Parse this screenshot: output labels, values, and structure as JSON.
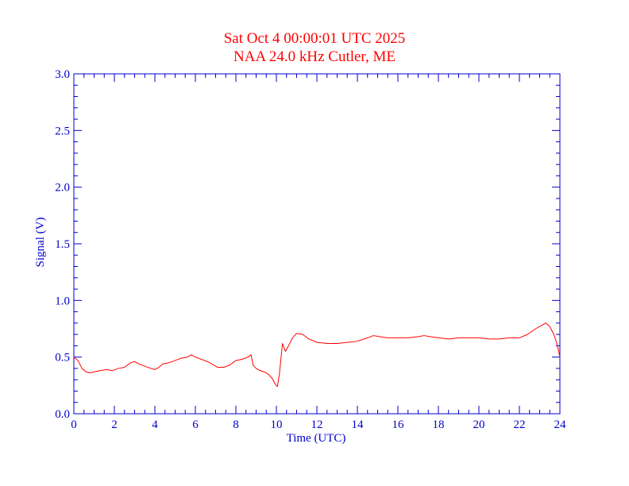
{
  "chart_data": {
    "type": "line",
    "title": "Sat Oct 4 00:00:01 UTC 2025",
    "subtitle": "NAA 24.0 kHz Cutler, ME",
    "xlabel": "Time (UTC)",
    "ylabel": "Signal (V)",
    "xlim": [
      0,
      24
    ],
    "ylim": [
      0.0,
      3.0
    ],
    "x_ticks": [
      "0",
      "2",
      "4",
      "6",
      "8",
      "10",
      "12",
      "14",
      "16",
      "18",
      "20",
      "22",
      "24"
    ],
    "y_ticks": [
      "0.0",
      "0.5",
      "1.0",
      "1.5",
      "2.0",
      "2.5",
      "3.0"
    ],
    "grid": false,
    "series": [
      {
        "color": "#ff0000",
        "points": [
          [
            0.0,
            0.5
          ],
          [
            0.2,
            0.47
          ],
          [
            0.4,
            0.4
          ],
          [
            0.6,
            0.37
          ],
          [
            0.8,
            0.36
          ],
          [
            1.0,
            0.37
          ],
          [
            1.3,
            0.38
          ],
          [
            1.6,
            0.39
          ],
          [
            1.9,
            0.38
          ],
          [
            2.2,
            0.4
          ],
          [
            2.5,
            0.41
          ],
          [
            2.8,
            0.45
          ],
          [
            3.0,
            0.46
          ],
          [
            3.2,
            0.44
          ],
          [
            3.5,
            0.42
          ],
          [
            3.8,
            0.4
          ],
          [
            4.0,
            0.39
          ],
          [
            4.2,
            0.41
          ],
          [
            4.4,
            0.44
          ],
          [
            4.7,
            0.45
          ],
          [
            5.0,
            0.47
          ],
          [
            5.3,
            0.49
          ],
          [
            5.6,
            0.5
          ],
          [
            5.8,
            0.52
          ],
          [
            6.0,
            0.5
          ],
          [
            6.3,
            0.48
          ],
          [
            6.6,
            0.46
          ],
          [
            6.9,
            0.43
          ],
          [
            7.1,
            0.41
          ],
          [
            7.4,
            0.41
          ],
          [
            7.7,
            0.43
          ],
          [
            8.0,
            0.47
          ],
          [
            8.3,
            0.48
          ],
          [
            8.6,
            0.5
          ],
          [
            8.75,
            0.52
          ],
          [
            8.85,
            0.43
          ],
          [
            9.0,
            0.4
          ],
          [
            9.2,
            0.38
          ],
          [
            9.4,
            0.37
          ],
          [
            9.6,
            0.35
          ],
          [
            9.8,
            0.31
          ],
          [
            9.95,
            0.26
          ],
          [
            10.05,
            0.24
          ],
          [
            10.15,
            0.35
          ],
          [
            10.3,
            0.62
          ],
          [
            10.45,
            0.55
          ],
          [
            10.6,
            0.6
          ],
          [
            10.8,
            0.67
          ],
          [
            11.0,
            0.71
          ],
          [
            11.3,
            0.7
          ],
          [
            11.6,
            0.66
          ],
          [
            12.0,
            0.63
          ],
          [
            12.5,
            0.62
          ],
          [
            13.0,
            0.62
          ],
          [
            13.5,
            0.63
          ],
          [
            14.0,
            0.64
          ],
          [
            14.5,
            0.67
          ],
          [
            14.8,
            0.69
          ],
          [
            15.1,
            0.68
          ],
          [
            15.5,
            0.67
          ],
          [
            16.0,
            0.67
          ],
          [
            16.5,
            0.67
          ],
          [
            17.0,
            0.68
          ],
          [
            17.3,
            0.69
          ],
          [
            17.6,
            0.68
          ],
          [
            18.0,
            0.67
          ],
          [
            18.5,
            0.66
          ],
          [
            19.0,
            0.67
          ],
          [
            19.5,
            0.67
          ],
          [
            20.0,
            0.67
          ],
          [
            20.5,
            0.66
          ],
          [
            21.0,
            0.66
          ],
          [
            21.5,
            0.67
          ],
          [
            22.0,
            0.67
          ],
          [
            22.4,
            0.7
          ],
          [
            22.8,
            0.75
          ],
          [
            23.1,
            0.78
          ],
          [
            23.3,
            0.8
          ],
          [
            23.5,
            0.77
          ],
          [
            23.7,
            0.7
          ],
          [
            23.85,
            0.62
          ],
          [
            24.0,
            0.5
          ]
        ]
      }
    ]
  }
}
